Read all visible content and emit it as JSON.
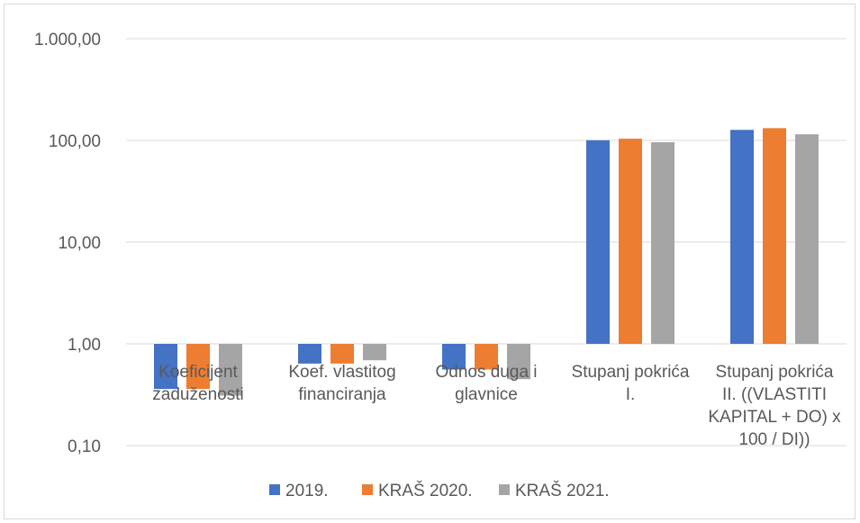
{
  "chart_data": {
    "type": "bar",
    "y_scale": "log",
    "ylim": [
      0.1,
      1000
    ],
    "grid": true,
    "legend_position": "bottom",
    "y_ticks": [
      {
        "value": 1000,
        "label": "1.000,00"
      },
      {
        "value": 100,
        "label": "100,00"
      },
      {
        "value": 10,
        "label": "10,00"
      },
      {
        "value": 1,
        "label": "1,00"
      },
      {
        "value": 0.1,
        "label": "0,10"
      }
    ],
    "categories": [
      "Koeficijent zaduženosti",
      "Koef. vlastitog financiranja",
      "Odnos duga i glavnice",
      "Stupanj pokrića I.",
      "Stupanj pokrića II. ((VLASTITI KAPITAL + DO) x 100 / DI))"
    ],
    "category_label_lines": [
      [
        "Koeficijent",
        "zaduženosti"
      ],
      [
        "Koef. vlastitog",
        "financiranja"
      ],
      [
        "Odnos duga i",
        "glavnice"
      ],
      [
        "Stupanj pokrića",
        "I."
      ],
      [
        "Stupanj pokrića",
        "II. ((VLASTITI",
        "KAPITAL + DO) x",
        "100 / DI))"
      ]
    ],
    "series": [
      {
        "name": "2019.",
        "color": "#4472c4",
        "values": [
          0.36,
          0.64,
          0.56,
          100.5,
          127
        ]
      },
      {
        "name": "KRAŠ 2020.",
        "color": "#ed7d31",
        "values": [
          0.36,
          0.64,
          0.56,
          104,
          132
        ]
      },
      {
        "name": "KRAŠ 2021.",
        "color": "#a5a5a5",
        "values": [
          0.31,
          0.69,
          0.45,
          96,
          115
        ]
      }
    ]
  }
}
